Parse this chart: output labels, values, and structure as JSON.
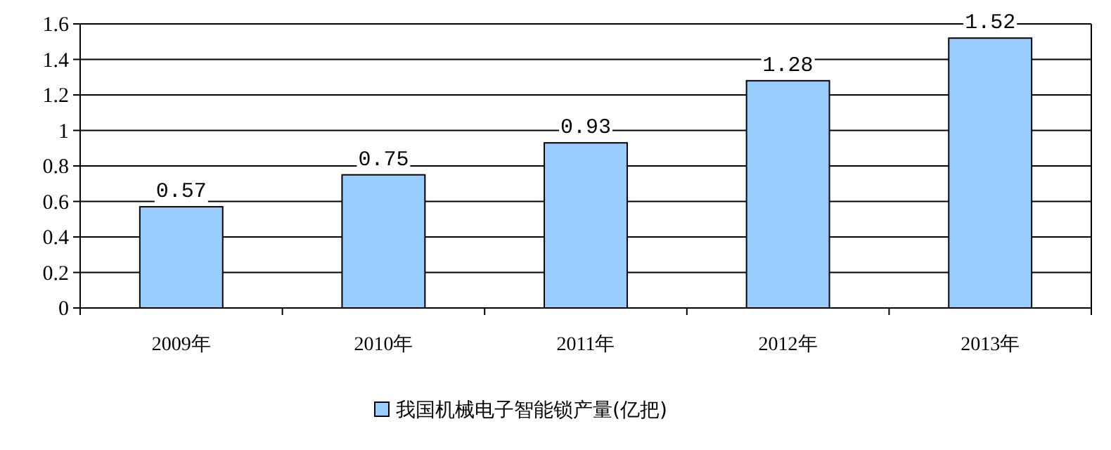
{
  "chart_data": {
    "type": "bar",
    "categories": [
      "2009年",
      "2010年",
      "2011年",
      "2012年",
      "2013年"
    ],
    "series": [
      {
        "name": "我国机械电子智能锁产量(亿把)",
        "color": "#99ccff",
        "values": [
          0.57,
          0.75,
          0.93,
          1.28,
          1.52
        ]
      }
    ],
    "ylim": [
      0,
      1.6
    ],
    "yticks": [
      0,
      0.2,
      0.4,
      0.6,
      0.8,
      1,
      1.2,
      1.4,
      1.6
    ],
    "grid": "y",
    "legend": "bottom",
    "data_labels": true
  }
}
